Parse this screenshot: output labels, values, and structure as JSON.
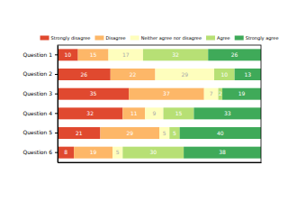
{
  "chart_data": {
    "type": "bar",
    "orientation": "horizontal",
    "stacked": true,
    "data_labels": true,
    "tick_labels": "y",
    "legend": "top",
    "categories": [
      "Question 1",
      "Question 2",
      "Question 3",
      "Question 4",
      "Question 5",
      "Question 6"
    ],
    "xlim": [
      0,
      100
    ],
    "series": [
      {
        "name": "Strongly disagree",
        "color": "#e0492f",
        "values": [
          10,
          26,
          35,
          32,
          21,
          8
        ]
      },
      {
        "name": "Disagree",
        "color": "#fdb768",
        "values": [
          15,
          22,
          37,
          11,
          29,
          19
        ]
      },
      {
        "name": "Neither agree nor disagree",
        "color": "#fefebd",
        "values": [
          17,
          29,
          7,
          9,
          5,
          5
        ]
      },
      {
        "name": "Agree",
        "color": "#b7e075",
        "values": [
          32,
          10,
          2,
          15,
          5,
          30
        ]
      },
      {
        "name": "Strongly agree",
        "color": "#3faa59",
        "values": [
          26,
          13,
          19,
          33,
          40,
          38
        ]
      }
    ]
  }
}
